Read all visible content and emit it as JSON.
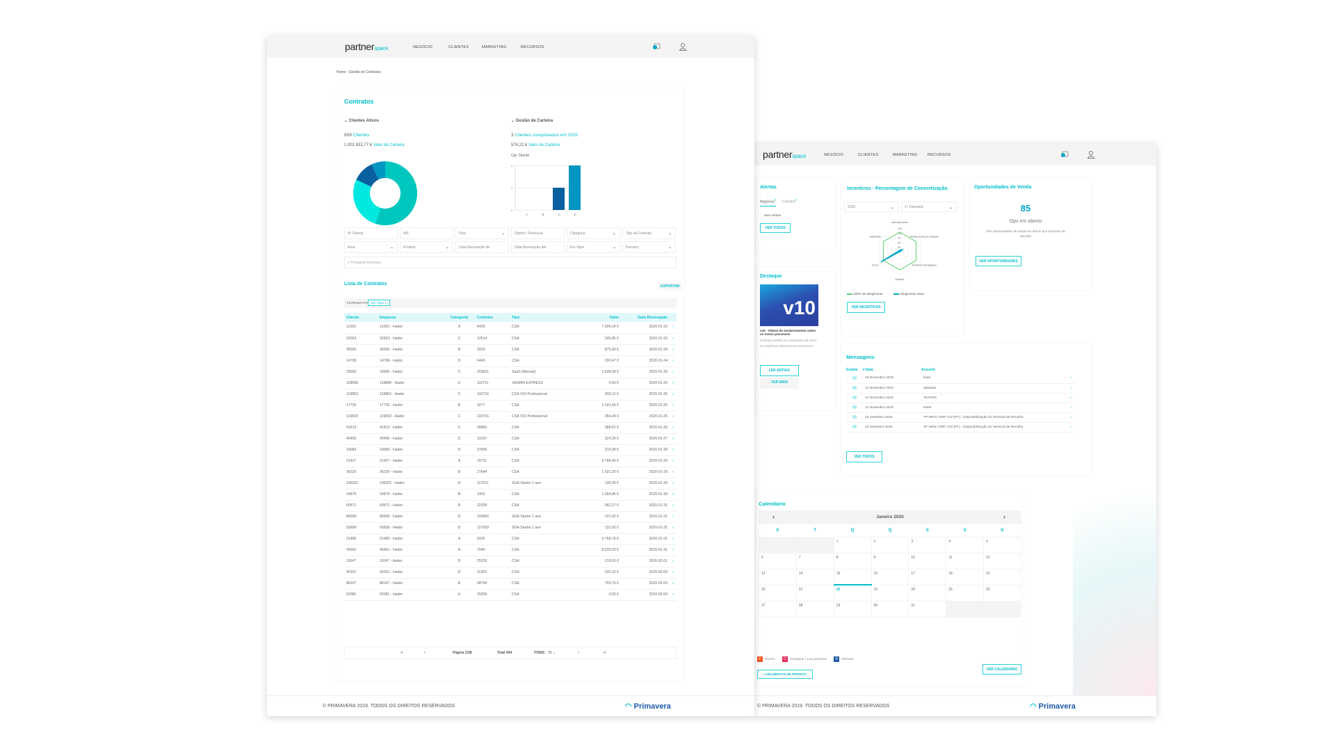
{
  "brand": {
    "name": "partner",
    "suffix": "space"
  },
  "nav": [
    "NEGÓCIO",
    "CLIENTES",
    "MARKETING",
    "RECURSOS"
  ],
  "breadcrumb": {
    "home": "Home",
    "current": "Gestão de Contratos"
  },
  "contratos": {
    "title": "Contratos",
    "clientes_ativos": {
      "label": "Clientes Ativos",
      "count": "909",
      "count_label": "Clientes",
      "valor": "1.001.932,77 €",
      "valor_label": "Valor de Carteira"
    },
    "gestao": {
      "label": "Gestão de Carteira",
      "count": "3",
      "count_label": "Clientes conquistados em 2020",
      "valor": "574,22 €",
      "valor_label": "Valor de Carteira"
    }
  },
  "chart_data": [
    {
      "type": "pie",
      "title": "Clientes Ativos",
      "donut": true,
      "values": [
        55,
        27,
        11,
        7
      ],
      "colors": [
        "#00c7be",
        "#00e8e0",
        "#0a5f9e",
        "#0096c2"
      ]
    },
    {
      "type": "bar",
      "title": "Cat. Cliente",
      "categories": [
        "A",
        "B",
        "C",
        "D"
      ],
      "values": [
        0,
        0,
        1,
        2
      ],
      "colors": [
        "#0096c2",
        "#0096c2",
        "#0a5f9e",
        "#0096c2"
      ],
      "ylim": [
        0,
        2
      ],
      "yticks": [
        "0",
        "1",
        "2"
      ]
    },
    {
      "type": "radar",
      "title": "Incentivos - Percentagem de Concretização",
      "axes": [
        "New Business",
        "Vendas Acima do Objetivo",
        "Produtos Estratégicos",
        "Pipeline",
        "Churn",
        "Satisfação"
      ],
      "ticks": [
        "125",
        "100",
        "75",
        "50",
        "25"
      ],
      "max": 125,
      "series": [
        {
          "name": "100% de atingimento",
          "values": [
            100,
            100,
            100,
            100,
            100,
            100
          ],
          "color": "#5ccf6a"
        },
        {
          "name": "Atingimento atual",
          "values": [
            5,
            15,
            5,
            3,
            115,
            3
          ],
          "color": "#00a6c8"
        }
      ]
    }
  ],
  "filters": [
    "Nº Cliente",
    "NIF",
    "País",
    "Distrito / Província",
    "Categoria",
    "Tipo de Contrato",
    "Área",
    "Produto",
    "Data Renovação de",
    "Data Renovação até",
    "Em Vigor",
    "Parceiro"
  ],
  "filter_dropdown": [
    false,
    false,
    true,
    false,
    true,
    true,
    true,
    true,
    false,
    false,
    true,
    true
  ],
  "search_placeholder": "Pesquisar Empresa",
  "lista": {
    "title": "Lista de Contratos",
    "export": "EXPORTAR",
    "filtered_by": "FILTRADO POR",
    "filter_tag": "Em Vigor  x",
    "columns": [
      "Cliente",
      "Empresa",
      "Categoria",
      "Contrato",
      "Tipo",
      "Valor",
      "Data Renovação"
    ],
    "rows": [
      [
        "12291",
        "12291 - Hador",
        "A",
        "6425",
        "CSA",
        "7.306,24 €",
        "2020-01-23"
      ],
      [
        "32553",
        "32553 - Hador",
        "C",
        "12514",
        "CSA",
        "245,85 €",
        "2020-01-23"
      ],
      [
        "35565",
        "35565 - Hador",
        "B",
        "3263",
        "CSA",
        "875,40 €",
        "2020-01-24"
      ],
      [
        "14768",
        "14768 - Hador",
        "D",
        "6449",
        "CSA",
        "230,47 €",
        "2020-01-24"
      ],
      [
        "29655",
        "29655 - Hador",
        "C",
        "203811",
        "SaaS (Mensal)",
        "1.638,00 €",
        "2020-01-25"
      ],
      [
        "118898",
        "118898 - Hador",
        "U",
        "116711",
        "JASMIN EXPRESS",
        "0,00 €",
        "2020-01-25"
      ],
      [
        "119853",
        "119853 - Hador",
        "C",
        "116716",
        "CSA V10 Professional",
        "339,12 €",
        "2020-01-25"
      ],
      [
        "17725",
        "17725 - Hador",
        "B",
        "3277",
        "CSA",
        "1.141,46 €",
        "2020-01-25"
      ],
      [
        "119833",
        "119833 - Hador",
        "C",
        "116716",
        "CSA V10 Professional",
        "356,04 €",
        "2020-01-25"
      ],
      [
        "41813",
        "41813 - Hador",
        "C",
        "28865",
        "CSA",
        "388,62 €",
        "2020-01-26"
      ],
      [
        "40456",
        "40456 - Hador",
        "D",
        "19197",
        "CSA",
        "324,25 €",
        "2020-01-27"
      ],
      [
        "19083",
        "19083 - Hador",
        "D",
        "37656",
        "CSA",
        "215,00 €",
        "2020-01-28"
      ],
      [
        "21427",
        "21427 - Hador",
        "A",
        "15711",
        "CSA",
        "6.786,49 €",
        "2020-01-29"
      ],
      [
        "36229",
        "36229 - Hador",
        "B",
        "27644",
        "CSA",
        "1.531,20 €",
        "2020-01-29"
      ],
      [
        "105201",
        "105201 - Hador",
        "D",
        "117011",
        "SGA Starter 1 ano",
        "136,00 €",
        "2020-01-30"
      ],
      [
        "24879",
        "24879 - Hador",
        "B",
        "3353",
        "CSA",
        "1.354,85 €",
        "2020-01-30"
      ],
      [
        "60671",
        "60671 - Hador",
        "B",
        "22328",
        "CSA",
        "962,27 €",
        "2020-01-31"
      ],
      [
        "86569",
        "86569 - Hador",
        "D",
        "116960",
        "SGA Starter 1 ano",
        "131,92 €",
        "2020-01-31"
      ],
      [
        "93658",
        "93658 - Hador",
        "D",
        "117059",
        "SGA Starter 1 ano",
        "131,92 €",
        "2020-01-31"
      ],
      [
        "21480",
        "21480 - Hador",
        "A",
        "5932",
        "CSA",
        "9.768,76 €",
        "2020-01-31"
      ],
      [
        "45661",
        "45661 - Hador",
        "A",
        "7044",
        "CSA",
        "8.233,00 €",
        "2020-01-31"
      ],
      [
        "11047",
        "11047 - Hador",
        "D",
        "25225",
        "CSA",
        "215,00 €",
        "2020-02-01"
      ],
      [
        "40191",
        "40191 - Hador",
        "D",
        "11352",
        "CSA",
        "232,10 €",
        "2020-02-03"
      ],
      [
        "88167",
        "88167 - Hador",
        "B",
        "58759",
        "CSA",
        "793,75 €",
        "2020-02-03"
      ],
      [
        "62081",
        "62081 - Hador",
        "U",
        "29256",
        "CSA",
        "0,00 €",
        "2020-02-04"
      ]
    ]
  },
  "pagination": {
    "first": "«",
    "prev": "‹",
    "page": "Página 1/38",
    "total": "Total 944",
    "items_label": "ITENS:",
    "items": "25",
    "next": "›",
    "last": "»"
  },
  "footer": {
    "copyright": "© PRIMAVERA 2019. TODOS OS DIREITOS RESERVADOS",
    "logo": "Primavera"
  },
  "alertas": {
    "title": "Alertas",
    "tabs": [
      "Negócios",
      "Clientes"
    ],
    "badges": [
      "0",
      "0"
    ],
    "empty": "Sem Alertas",
    "button": "VER TODOS"
  },
  "incentivos": {
    "title": "Incentivos - Percentagem de Concretização",
    "year": "2020",
    "period": "1º Trimestre",
    "button": "VER INCENTIVOS"
  },
  "oportunidades": {
    "title": "Oportunidades de Venda",
    "count": "85",
    "label": "Opv em aberto",
    "text": "Tem oportunidades de venda em aberto que precisam de atenção",
    "button": "VER OPORTUNIDADES"
  },
  "destaque": {
    "title": "Destaque",
    "image_text": "v10",
    "headline": "v10 - Vídeos de esclarecimento sobre os novos processos",
    "text": "Conheça melhor as motivações da v10 e os respetivos impactos nos processos.",
    "button": "LER ARTIGO",
    "more": "VER MAIS"
  },
  "mensagens": {
    "title": "Mensagens",
    "columns": [
      "Estado",
      "Data",
      "Assunto"
    ],
    "rows": [
      [
        "15 Novembro 2019",
        "teste"
      ],
      [
        "12 Novembro 2019",
        "adsadas"
      ],
      [
        "12 Novembro 2019",
        "TESTER"
      ],
      [
        "12 Novembro 2019",
        "tester"
      ],
      [
        "23 Setembro 2019",
        "TP INFO | ERP V10 (PT) - Disponibilização do Terminal de Recolha"
      ],
      [
        "20 Setembro 2019",
        "TP NEW | ERP V10 (PT) - Disponibilização do Terminal de Recolha"
      ]
    ],
    "button": "VER TODOS"
  },
  "calendario": {
    "title": "Calendário",
    "month": "Janeiro 2020",
    "weekdays": [
      "S",
      "T",
      "Q",
      "Q",
      "S",
      "S",
      "D"
    ],
    "first_weekday": 2,
    "days": 31,
    "today": 22,
    "legend": [
      {
        "code": "E",
        "label": "Evento",
        "color": "#f0501e"
      },
      {
        "code": "D",
        "label": "Destaque / Lançamentos",
        "color": "#e8285a"
      },
      {
        "code": "R",
        "label": "Release",
        "color": "#1e5aa8"
      }
    ],
    "launch_button": "LANÇAMENTOS DE PRODUTO",
    "button": "VER CALENDÁRIO"
  }
}
